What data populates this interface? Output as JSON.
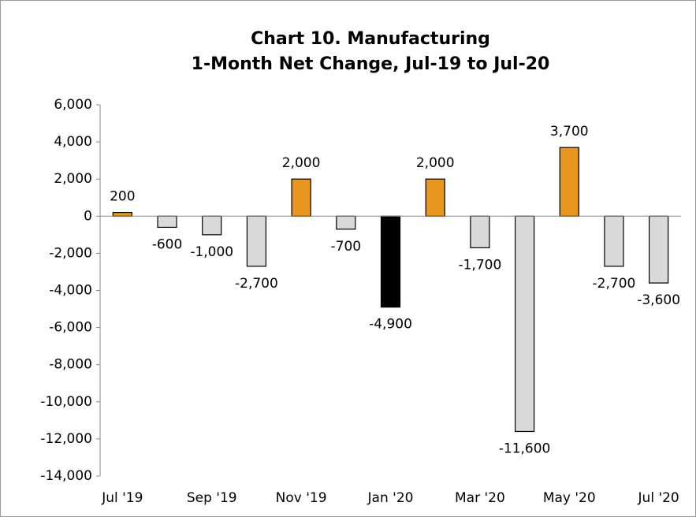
{
  "chart_data": {
    "type": "bar",
    "title": [
      "Chart 10. Manufacturing",
      "1-Month Net Change, Jul-19 to Jul-20"
    ],
    "categories": [
      "Jul '19",
      null,
      "Sep '19",
      null,
      "Nov '19",
      null,
      "Jan '20",
      null,
      "Mar '20",
      null,
      "May '20",
      null,
      "Jul '20"
    ],
    "values": [
      200,
      -600,
      -1000,
      -2700,
      2000,
      -700,
      -4900,
      2000,
      -1700,
      -11600,
      3700,
      -2700,
      -3600
    ],
    "value_labels": [
      "200",
      "-600",
      "-1,000",
      "-2,700",
      "2,000",
      "-700",
      "-4,900",
      "2,000",
      "-1,700",
      "-11,600",
      "3,700",
      "-2,700",
      "-3,600"
    ],
    "colors": [
      "#e8961e",
      "#d9d9d9",
      "#d9d9d9",
      "#d9d9d9",
      "#e8961e",
      "#d9d9d9",
      "#000000",
      "#e8961e",
      "#d9d9d9",
      "#d9d9d9",
      "#e8961e",
      "#d9d9d9",
      "#d9d9d9"
    ],
    "ylim": [
      -14000,
      6000
    ],
    "yticks": [
      {
        "value": -14000,
        "label": "-14,000"
      },
      {
        "value": -12000,
        "label": "-12,000"
      },
      {
        "value": -10000,
        "label": "-10,000"
      },
      {
        "value": -8000,
        "label": "-8,000"
      },
      {
        "value": -6000,
        "label": "-6,000"
      },
      {
        "value": -4000,
        "label": "-4,000"
      },
      {
        "value": -2000,
        "label": "-2,000"
      },
      0,
      {
        "value": 2000,
        "label": "2,000"
      },
      {
        "value": 4000,
        "label": "4,000"
      },
      {
        "value": 6000,
        "label": "6,000"
      }
    ]
  }
}
